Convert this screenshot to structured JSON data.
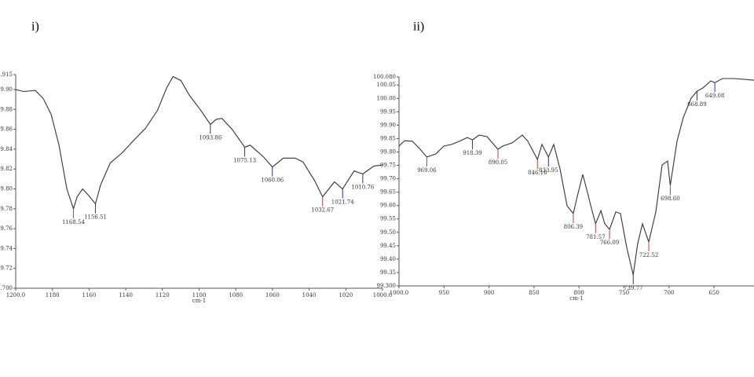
{
  "chart_data": [
    {
      "type": "line",
      "title": "i)",
      "xlabel": "cm-1",
      "color": "#333333",
      "x": [
        1200,
        1195.7,
        1189.3,
        1185,
        1180.7,
        1176.4,
        1172.1,
        1168.54,
        1166.5,
        1163.5,
        1160.5,
        1156.51,
        1153.7,
        1148.5,
        1142.1,
        1135.6,
        1129.2,
        1122.7,
        1117.6,
        1114.2,
        1109.9,
        1105.6,
        1099.1,
        1093.86,
        1090.6,
        1087.6,
        1082,
        1075.13,
        1072.1,
        1064.8,
        1060.06,
        1054.1,
        1047.6,
        1043.3,
        1036.9,
        1032.67,
        1026.2,
        1021.74,
        1015.5,
        1010.76,
        1004.7,
        1000
      ],
      "values": [
        99.9,
        99.898,
        99.899,
        99.891,
        99.875,
        99.844,
        99.8,
        99.78,
        99.792,
        99.8,
        99.794,
        99.785,
        99.804,
        99.826,
        99.836,
        99.849,
        99.861,
        99.879,
        99.902,
        99.913,
        99.909,
        99.895,
        99.879,
        99.865,
        99.87,
        99.871,
        99.86,
        99.842,
        99.844,
        99.832,
        99.822,
        99.831,
        99.831,
        99.827,
        99.808,
        99.792,
        99.807,
        99.8,
        99.818,
        99.815,
        99.823,
        99.824
      ],
      "xlim": [
        1200,
        1000
      ],
      "xticks": [
        {
          "value": 1200,
          "label": "1200.0"
        },
        1180,
        1160,
        1140,
        1120,
        1100,
        1080,
        1060,
        1040,
        1020,
        {
          "value": 1000,
          "label": "1000.0"
        }
      ],
      "ylim": [
        99.7,
        99.915
      ],
      "yticks": [
        {
          "value": 99.7,
          "label": "99.700"
        },
        99.72,
        99.74,
        99.76,
        99.78,
        {
          "value": 99.8,
          "label": "99.80"
        },
        99.82,
        99.84,
        99.86,
        99.88,
        {
          "value": 99.9,
          "label": "99.90"
        },
        99.915
      ],
      "peaks": [
        {
          "x": 1168.54,
          "y": 99.78,
          "label": "1168.54",
          "color": "#c04040"
        },
        {
          "x": 1156.51,
          "y": 99.785,
          "label": "1156.51",
          "color": "#3030a0"
        },
        {
          "x": 1093.86,
          "y": 99.865,
          "label": "1093.86",
          "color": "#3030a0"
        },
        {
          "x": 1075.13,
          "y": 99.842,
          "label": "1075.13",
          "color": "#3030a0"
        },
        {
          "x": 1060.06,
          "y": 99.822,
          "label": "1060.06",
          "color": "#3030a0"
        },
        {
          "x": 1032.67,
          "y": 99.792,
          "label": "1032.67",
          "color": "#c04040"
        },
        {
          "x": 1021.74,
          "y": 99.8,
          "label": "1021.74",
          "color": "#3030a0"
        },
        {
          "x": 1010.76,
          "y": 99.815,
          "label": "1010.76",
          "color": "#3030a0"
        }
      ]
    },
    {
      "type": "line",
      "title": "ii)",
      "xlabel": "cm-1",
      "color": "#333333",
      "x": [
        1000,
        993.9,
        985.2,
        976.4,
        969.06,
        959,
        950.3,
        941.5,
        932.8,
        924.1,
        918.39,
        911,
        902.2,
        890.05,
        884.8,
        874.3,
        863,
        856.9,
        846.16,
        841.2,
        833.95,
        828.1,
        821.1,
        813.3,
        806.39,
        801.9,
        795.8,
        790.6,
        786.2,
        781.57,
        775.7,
        771.4,
        766.09,
        759.2,
        753.9,
        747,
        739.77,
        734.8,
        729.5,
        722.52,
        714.7,
        707.7,
        701.6,
        698.6,
        691.1,
        684.2,
        675.4,
        668.89,
        662.4,
        653.7,
        649.08,
        640.6,
        627.5,
        605.6
      ],
      "values": [
        99.822,
        99.842,
        99.84,
        99.81,
        99.781,
        99.793,
        99.822,
        99.828,
        99.84,
        99.854,
        99.845,
        99.863,
        99.857,
        99.81,
        99.822,
        99.834,
        99.863,
        99.84,
        99.772,
        99.828,
        99.781,
        99.828,
        99.737,
        99.599,
        99.57,
        99.634,
        99.716,
        99.649,
        99.59,
        99.532,
        99.581,
        99.532,
        99.511,
        99.576,
        99.57,
        99.444,
        99.341,
        99.458,
        99.532,
        99.464,
        99.576,
        99.752,
        99.766,
        99.675,
        99.84,
        99.928,
        100.001,
        100.027,
        100.039,
        100.065,
        100.059,
        100.074,
        100.074,
        100.068
      ],
      "xlim": [
        1000,
        605.6
      ],
      "xticks": [
        {
          "value": 1000,
          "label": "1000.0"
        },
        950,
        900,
        850,
        800,
        750,
        700,
        650
      ],
      "ylim": [
        99.3,
        100.08
      ],
      "yticks": [
        {
          "value": 99.3,
          "label": "99.300"
        },
        99.35,
        {
          "value": 99.4,
          "label": "99.40"
        },
        99.45,
        {
          "value": 99.5,
          "label": "99.50"
        },
        99.55,
        {
          "value": 99.6,
          "label": "99.60"
        },
        99.65,
        {
          "value": 99.7,
          "label": "99.70"
        },
        99.75,
        {
          "value": 99.8,
          "label": "99.80"
        },
        99.85,
        {
          "value": 99.9,
          "label": "99.90"
        },
        99.95,
        {
          "value": 100,
          "label": "100.00"
        },
        100.05,
        {
          "value": 100.08,
          "label": "100.080"
        }
      ],
      "peaks": [
        {
          "x": 969.06,
          "y": 99.781,
          "label": "969.06",
          "color": "#c04040"
        },
        {
          "x": 918.39,
          "y": 99.845,
          "label": "918.39",
          "color": "#3030a0"
        },
        {
          "x": 890.05,
          "y": 99.81,
          "label": "890.05",
          "color": "#c04040"
        },
        {
          "x": 846.16,
          "y": 99.772,
          "label": "846.16",
          "color": "#c04040"
        },
        {
          "x": 833.95,
          "y": 99.781,
          "label": "833.95",
          "color": "#3030a0"
        },
        {
          "x": 806.39,
          "y": 99.57,
          "label": "806.39",
          "color": "#c04040"
        },
        {
          "x": 781.57,
          "y": 99.532,
          "label": "781.57",
          "color": "#c04040"
        },
        {
          "x": 766.09,
          "y": 99.511,
          "label": "766.09",
          "color": "#c04040"
        },
        {
          "x": 739.77,
          "y": 99.341,
          "label": "739.77",
          "color": "#3030a0"
        },
        {
          "x": 722.52,
          "y": 99.464,
          "label": "722.52",
          "color": "#c04040"
        },
        {
          "x": 698.6,
          "y": 99.675,
          "label": "698.60",
          "color": "#c04040"
        },
        {
          "x": 668.89,
          "y": 100.027,
          "label": "668.89",
          "color": "#3030a0"
        },
        {
          "x": 649.08,
          "y": 100.059,
          "label": "649.08",
          "color": "#3030a0"
        }
      ]
    }
  ]
}
